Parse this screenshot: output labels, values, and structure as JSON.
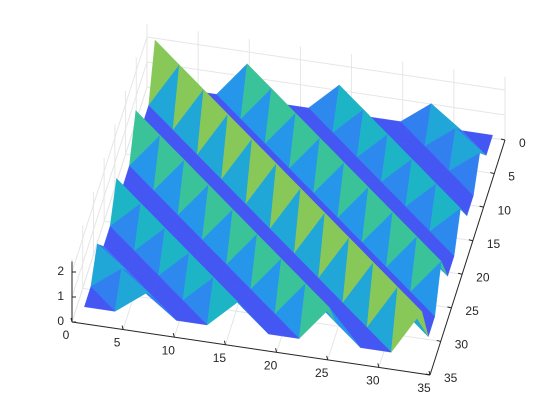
{
  "chart_data": {
    "type": "surface",
    "x": [
      1,
      4,
      7,
      10,
      13,
      16,
      19,
      22,
      25,
      28,
      31,
      34
    ],
    "y": [
      1,
      4,
      7,
      10,
      13,
      16,
      19,
      22,
      25,
      28,
      31,
      34
    ],
    "z": [
      [
        2.2,
        0.4,
        0.4,
        1.8,
        0.4,
        0.4,
        1.5,
        0.4,
        0.4,
        1.3,
        0.4,
        0.4
      ],
      [
        0.4,
        2.2,
        0.4,
        0.4,
        1.8,
        0.4,
        0.4,
        1.5,
        0.4,
        0.4,
        1.3,
        0.4
      ],
      [
        0.4,
        0.4,
        2.2,
        0.4,
        0.4,
        1.8,
        0.4,
        0.4,
        1.5,
        0.4,
        0.4,
        1.3
      ],
      [
        1.8,
        0.4,
        0.4,
        2.2,
        0.4,
        0.4,
        1.8,
        0.4,
        0.4,
        1.5,
        0.4,
        0.4
      ],
      [
        0.4,
        1.8,
        0.4,
        0.4,
        2.2,
        0.4,
        0.4,
        1.8,
        0.4,
        0.4,
        1.5,
        0.4
      ],
      [
        0.4,
        0.4,
        1.8,
        0.4,
        0.4,
        2.2,
        0.4,
        0.4,
        1.8,
        0.4,
        0.4,
        1.5
      ],
      [
        1.5,
        0.4,
        0.4,
        1.8,
        0.4,
        0.4,
        2.2,
        0.4,
        0.4,
        1.8,
        0.4,
        0.4
      ],
      [
        0.4,
        1.5,
        0.4,
        0.4,
        1.8,
        0.4,
        0.4,
        2.2,
        0.4,
        0.4,
        1.8,
        0.4
      ],
      [
        0.4,
        0.4,
        1.5,
        0.4,
        0.4,
        1.8,
        0.4,
        0.4,
        2.2,
        0.4,
        0.4,
        1.8
      ],
      [
        1.3,
        0.4,
        0.4,
        1.5,
        0.4,
        0.4,
        1.8,
        0.4,
        0.4,
        2.2,
        0.4,
        0.4
      ],
      [
        0.4,
        1.3,
        0.4,
        0.4,
        1.5,
        0.4,
        0.4,
        1.8,
        0.4,
        0.4,
        2.2,
        0.4
      ],
      [
        0.4,
        0.4,
        1.3,
        0.4,
        0.4,
        1.5,
        0.4,
        0.4,
        1.8,
        0.4,
        0.4,
        2.2
      ]
    ],
    "xlim": [
      0,
      35
    ],
    "ylim": [
      0,
      35
    ],
    "zlim": [
      0,
      2.2
    ],
    "xticks": [
      0,
      5,
      10,
      15,
      20,
      25,
      30,
      35
    ],
    "yticks": [
      0,
      5,
      10,
      15,
      20,
      25,
      30,
      35
    ],
    "zticks": [
      0,
      1,
      2
    ],
    "grid": true
  }
}
